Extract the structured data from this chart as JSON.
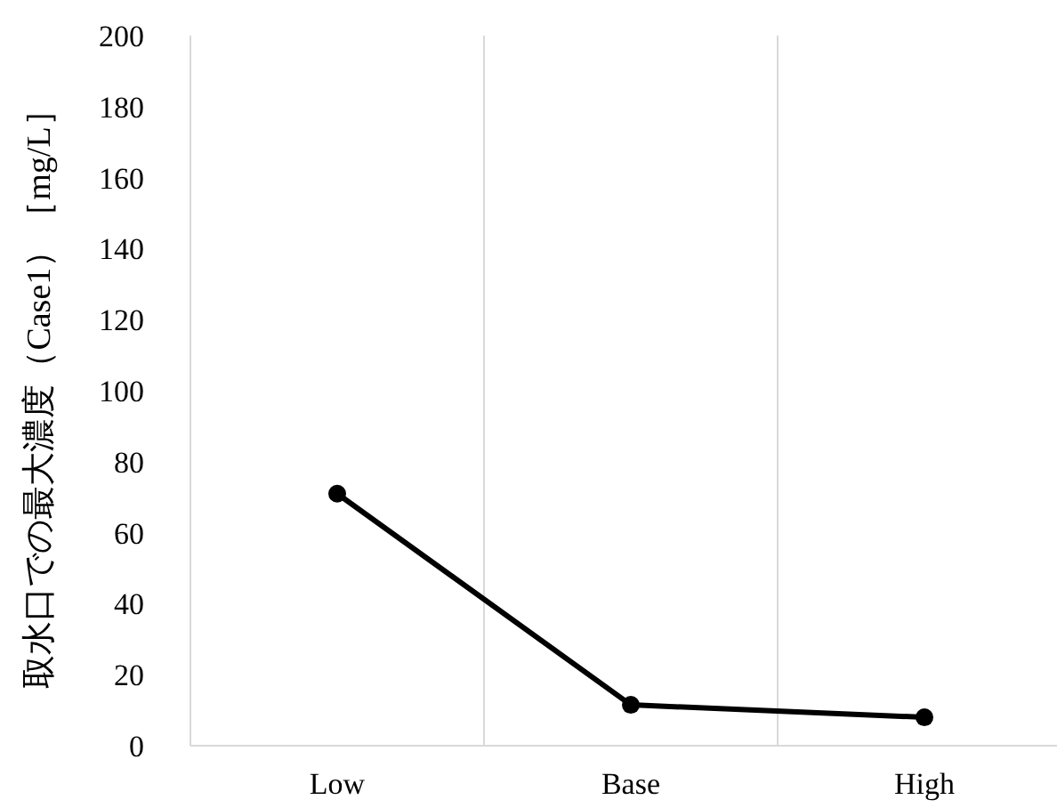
{
  "chart_data": {
    "type": "line",
    "ylabel": "取水口での最大濃度（Case1）［mg/L］",
    "categories": [
      "Low",
      "Base",
      "High"
    ],
    "series": [
      {
        "color": "#000000",
        "values": [
          71,
          11.5,
          8
        ]
      }
    ],
    "ylim": [
      0,
      200
    ],
    "yticks": [
      0,
      20,
      40,
      60,
      80,
      100,
      120,
      140,
      160,
      180,
      200
    ],
    "grid": "x",
    "marker": "circle",
    "line_style": "solid"
  }
}
